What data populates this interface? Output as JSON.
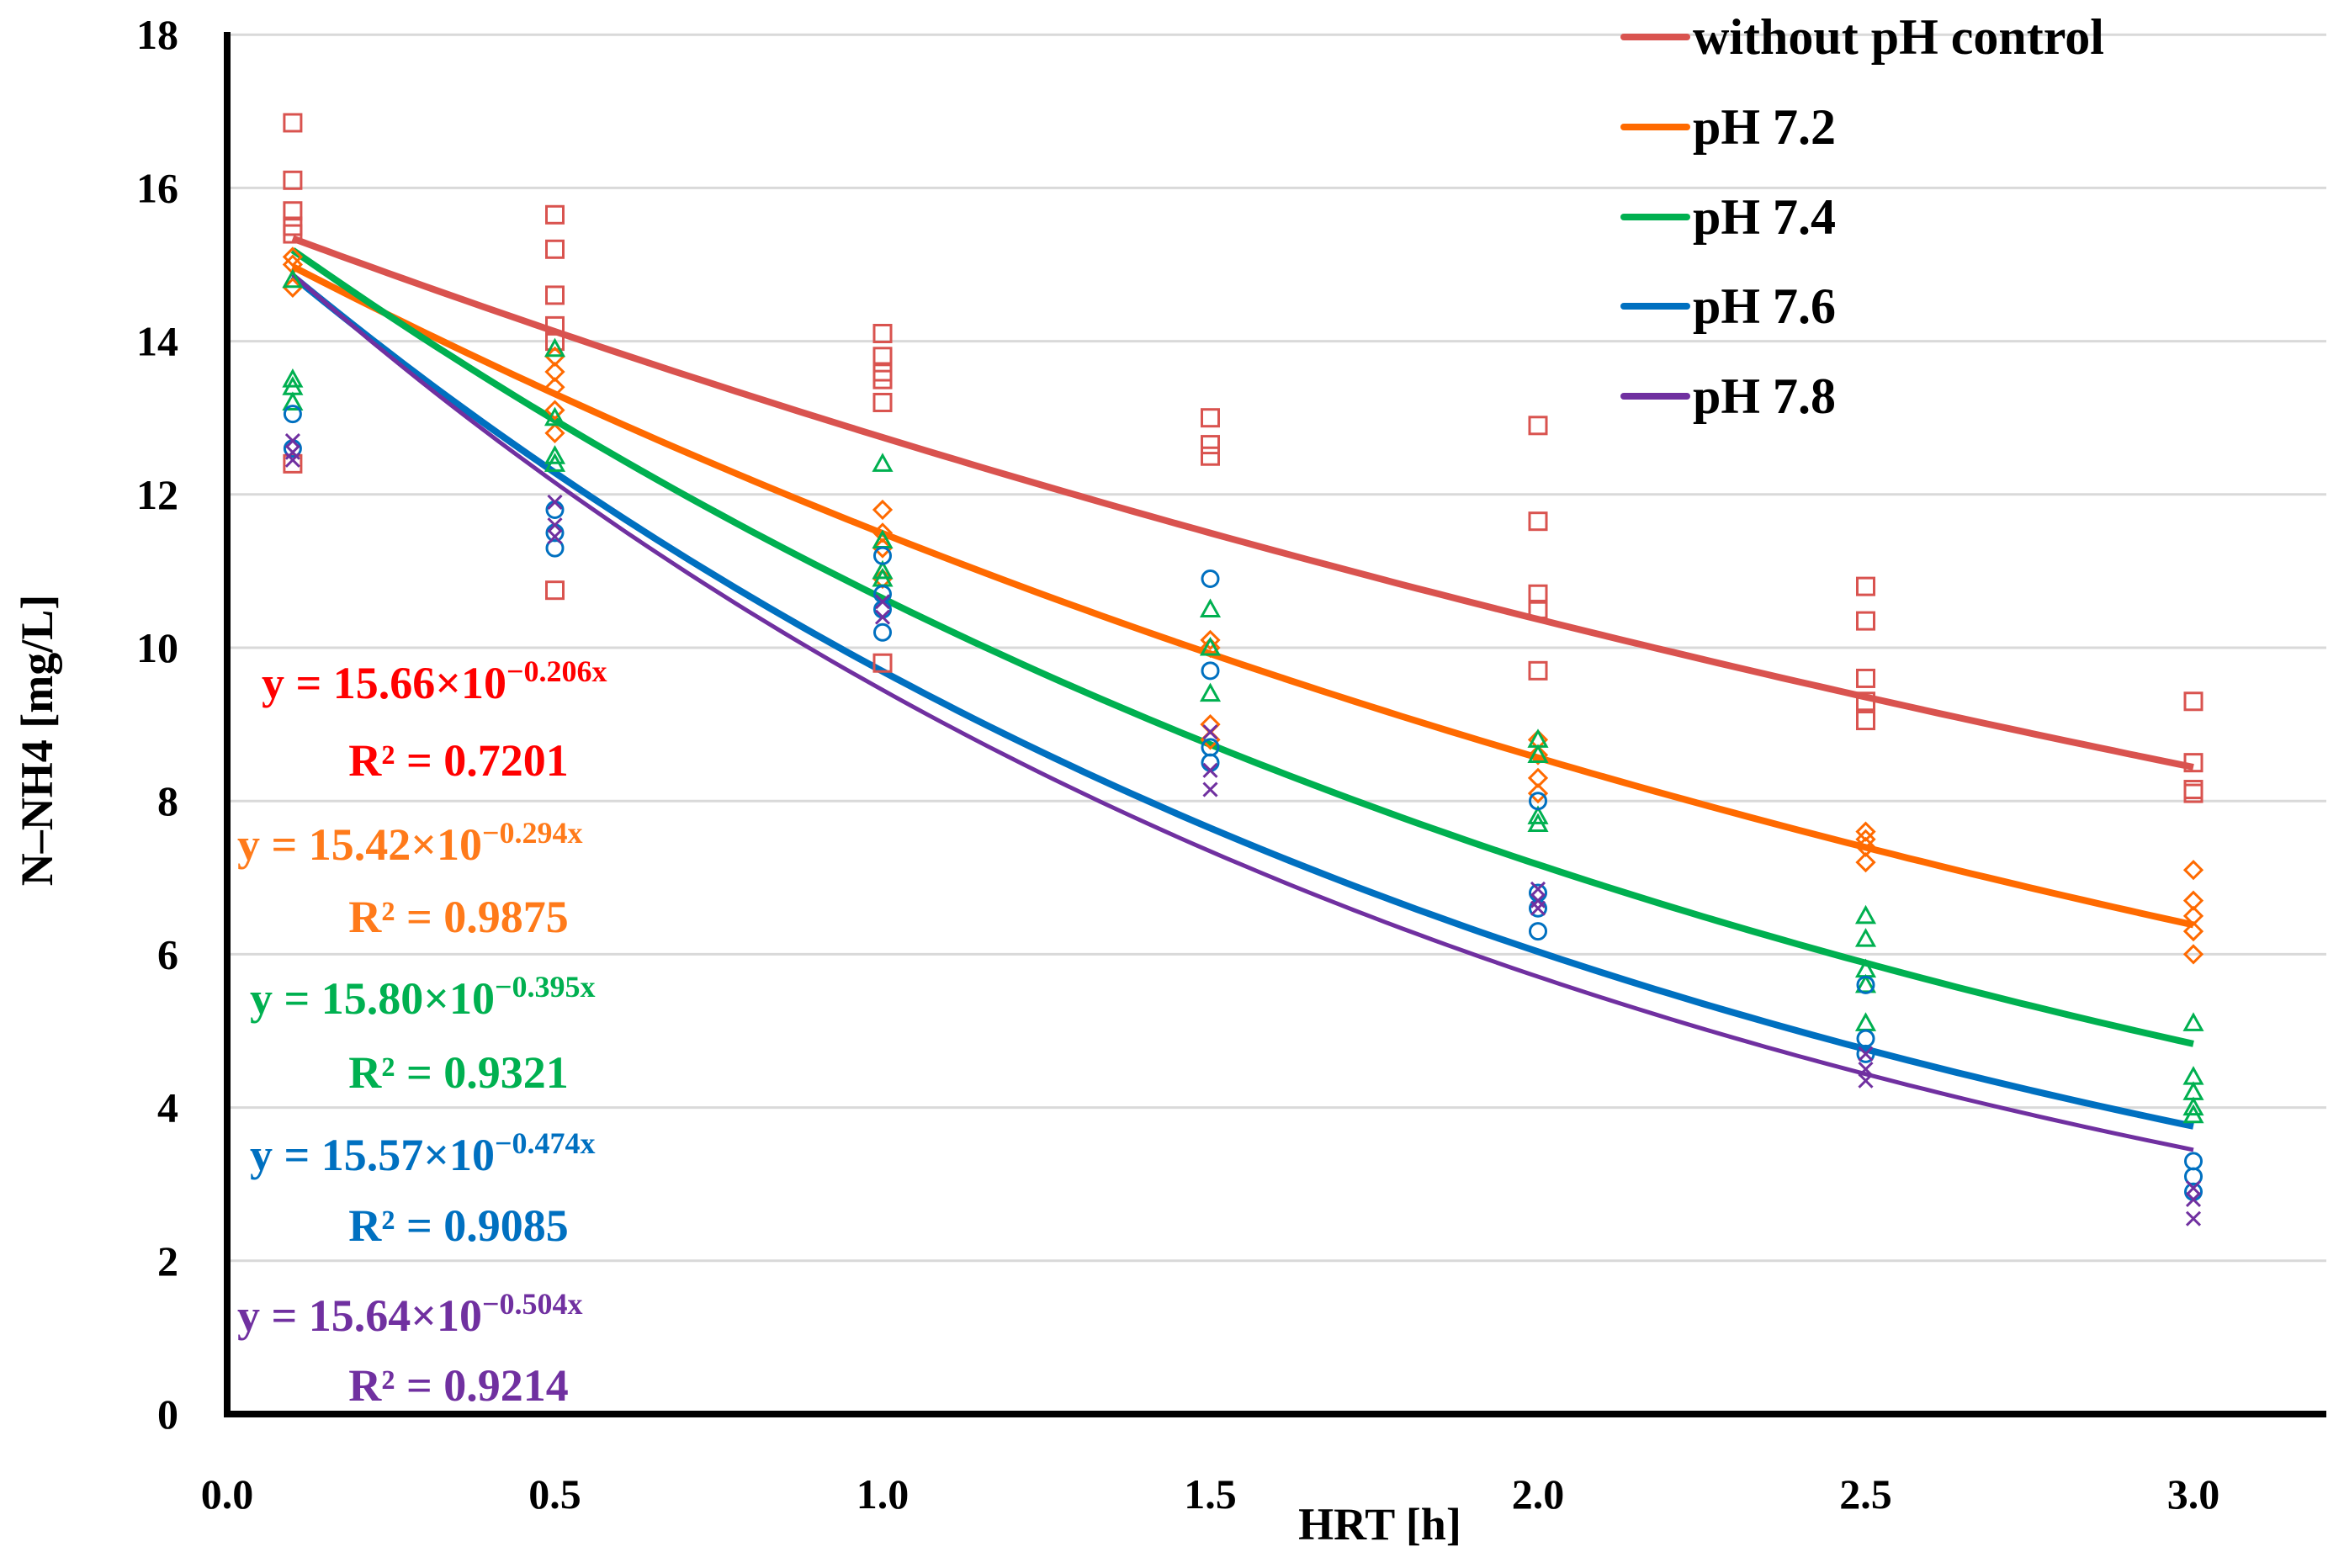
{
  "chart_data": {
    "type": "scatter",
    "title": "",
    "xlabel": "HRT [h]",
    "ylabel": "N–NH4 [mg/L]",
    "xlim": [
      0,
      3.2
    ],
    "ylim": [
      0,
      18
    ],
    "xticks": [
      "0.0",
      "0.5",
      "1.0",
      "1.5",
      "2.0",
      "2.5",
      "3.0"
    ],
    "yticks": [
      "0",
      "2",
      "4",
      "6",
      "8",
      "10",
      "12",
      "14",
      "16",
      "18"
    ],
    "grid": "horizontal",
    "legend_position": "top-right",
    "series": [
      {
        "name": "without pH control",
        "color": "#d9534f",
        "marker": "square",
        "fit": {
          "a": 15.66,
          "b": 0.206,
          "label": "y = 15.66×10",
          "exponent": "−0.206x",
          "r2": "R² = 0.7201",
          "label_color": "#ff0000"
        },
        "points": [
          [
            0.1,
            16.85
          ],
          [
            0.1,
            16.1
          ],
          [
            0.1,
            15.7
          ],
          [
            0.1,
            15.5
          ],
          [
            0.1,
            15.4
          ],
          [
            0.1,
            12.4
          ],
          [
            0.5,
            15.65
          ],
          [
            0.5,
            15.2
          ],
          [
            0.5,
            14.6
          ],
          [
            0.5,
            14.2
          ],
          [
            0.5,
            14.0
          ],
          [
            0.5,
            10.75
          ],
          [
            1.0,
            14.1
          ],
          [
            1.0,
            13.8
          ],
          [
            1.0,
            13.6
          ],
          [
            1.0,
            13.5
          ],
          [
            1.0,
            13.2
          ],
          [
            1.0,
            9.8
          ],
          [
            1.5,
            13.0
          ],
          [
            1.5,
            12.65
          ],
          [
            1.5,
            12.5
          ],
          [
            2.0,
            12.9
          ],
          [
            2.0,
            11.65
          ],
          [
            2.0,
            10.7
          ],
          [
            2.0,
            10.5
          ],
          [
            2.0,
            9.7
          ],
          [
            2.5,
            10.8
          ],
          [
            2.5,
            10.35
          ],
          [
            2.5,
            9.6
          ],
          [
            2.5,
            9.3
          ],
          [
            2.5,
            9.05
          ],
          [
            3.0,
            9.3
          ],
          [
            3.0,
            8.5
          ],
          [
            3.0,
            8.15
          ],
          [
            3.0,
            8.1
          ]
        ]
      },
      {
        "name": "pH 7.2",
        "color": "#ff6a00",
        "marker": "diamond",
        "fit": {
          "a": 15.42,
          "b": 0.294,
          "label": "y = 15.42×10",
          "exponent": "−0.294x",
          "r2": "R² = 0.9875",
          "label_color": "#ff7a1a"
        },
        "points": [
          [
            0.1,
            15.1
          ],
          [
            0.1,
            15.0
          ],
          [
            0.1,
            14.7
          ],
          [
            0.5,
            13.8
          ],
          [
            0.5,
            13.6
          ],
          [
            0.5,
            13.4
          ],
          [
            0.5,
            13.1
          ],
          [
            0.5,
            12.8
          ],
          [
            1.0,
            11.8
          ],
          [
            1.0,
            11.5
          ],
          [
            1.0,
            11.3
          ],
          [
            1.0,
            10.9
          ],
          [
            1.5,
            10.1
          ],
          [
            1.5,
            10.0
          ],
          [
            1.5,
            9.0
          ],
          [
            1.5,
            8.8
          ],
          [
            2.0,
            8.8
          ],
          [
            2.0,
            8.6
          ],
          [
            2.0,
            8.3
          ],
          [
            2.0,
            8.1
          ],
          [
            2.5,
            7.6
          ],
          [
            2.5,
            7.5
          ],
          [
            2.5,
            7.4
          ],
          [
            2.5,
            7.2
          ],
          [
            3.0,
            7.1
          ],
          [
            3.0,
            6.7
          ],
          [
            3.0,
            6.5
          ],
          [
            3.0,
            6.3
          ],
          [
            3.0,
            6.0
          ]
        ]
      },
      {
        "name": "pH 7.4",
        "color": "#00b050",
        "marker": "triangle",
        "fit": {
          "a": 15.8,
          "b": 0.395,
          "label": "y = 15.80×10",
          "exponent": "−0.395x",
          "r2": "R² = 0.9321",
          "label_color": "#00b050"
        },
        "points": [
          [
            0.1,
            14.8
          ],
          [
            0.1,
            13.5
          ],
          [
            0.1,
            13.4
          ],
          [
            0.1,
            13.2
          ],
          [
            0.5,
            13.9
          ],
          [
            0.5,
            13.0
          ],
          [
            0.5,
            12.5
          ],
          [
            0.5,
            12.4
          ],
          [
            1.0,
            12.4
          ],
          [
            1.0,
            11.4
          ],
          [
            1.0,
            11.0
          ],
          [
            1.0,
            10.9
          ],
          [
            1.5,
            10.5
          ],
          [
            1.5,
            10.0
          ],
          [
            1.5,
            9.4
          ],
          [
            2.0,
            8.8
          ],
          [
            2.0,
            8.6
          ],
          [
            2.0,
            7.8
          ],
          [
            2.0,
            7.7
          ],
          [
            2.5,
            6.5
          ],
          [
            2.5,
            6.2
          ],
          [
            2.5,
            5.8
          ],
          [
            2.5,
            5.6
          ],
          [
            2.5,
            5.1
          ],
          [
            3.0,
            5.1
          ],
          [
            3.0,
            4.4
          ],
          [
            3.0,
            4.2
          ],
          [
            3.0,
            4.0
          ],
          [
            3.0,
            3.9
          ]
        ]
      },
      {
        "name": "pH 7.6",
        "color": "#0070c0",
        "marker": "circle",
        "fit": {
          "a": 15.57,
          "b": 0.474,
          "label": "y = 15.57×10",
          "exponent": "−0.474x",
          "r2": "R² = 0.9085",
          "label_color": "#0070c0"
        },
        "points": [
          [
            0.1,
            13.05
          ],
          [
            0.1,
            12.6
          ],
          [
            0.5,
            11.8
          ],
          [
            0.5,
            11.5
          ],
          [
            0.5,
            11.3
          ],
          [
            1.0,
            11.2
          ],
          [
            1.0,
            10.7
          ],
          [
            1.0,
            10.5
          ],
          [
            1.0,
            10.2
          ],
          [
            1.5,
            10.9
          ],
          [
            1.5,
            9.7
          ],
          [
            1.5,
            8.7
          ],
          [
            1.5,
            8.5
          ],
          [
            2.0,
            8.0
          ],
          [
            2.0,
            6.8
          ],
          [
            2.0,
            6.6
          ],
          [
            2.0,
            6.3
          ],
          [
            2.5,
            5.6
          ],
          [
            2.5,
            4.9
          ],
          [
            2.5,
            4.7
          ],
          [
            3.0,
            3.3
          ],
          [
            3.0,
            3.1
          ],
          [
            3.0,
            2.9
          ]
        ]
      },
      {
        "name": "pH 7.8",
        "color": "#7030a0",
        "marker": "cross",
        "fit": {
          "a": 15.64,
          "b": 0.504,
          "label": "y = 15.64×10",
          "exponent": "−0.504x",
          "r2": "R² = 0.9214",
          "label_color": "#7030a0"
        },
        "points": [
          [
            0.1,
            12.7
          ],
          [
            0.1,
            12.55
          ],
          [
            0.1,
            12.45
          ],
          [
            0.5,
            11.9
          ],
          [
            0.5,
            11.6
          ],
          [
            0.5,
            11.45
          ],
          [
            1.0,
            10.6
          ],
          [
            1.0,
            10.4
          ],
          [
            1.5,
            8.9
          ],
          [
            1.5,
            8.4
          ],
          [
            1.5,
            8.15
          ],
          [
            2.0,
            6.85
          ],
          [
            2.0,
            6.7
          ],
          [
            2.0,
            6.6
          ],
          [
            2.5,
            4.7
          ],
          [
            2.5,
            4.5
          ],
          [
            2.5,
            4.35
          ],
          [
            3.0,
            2.95
          ],
          [
            3.0,
            2.8
          ],
          [
            3.0,
            2.55
          ]
        ]
      }
    ]
  }
}
